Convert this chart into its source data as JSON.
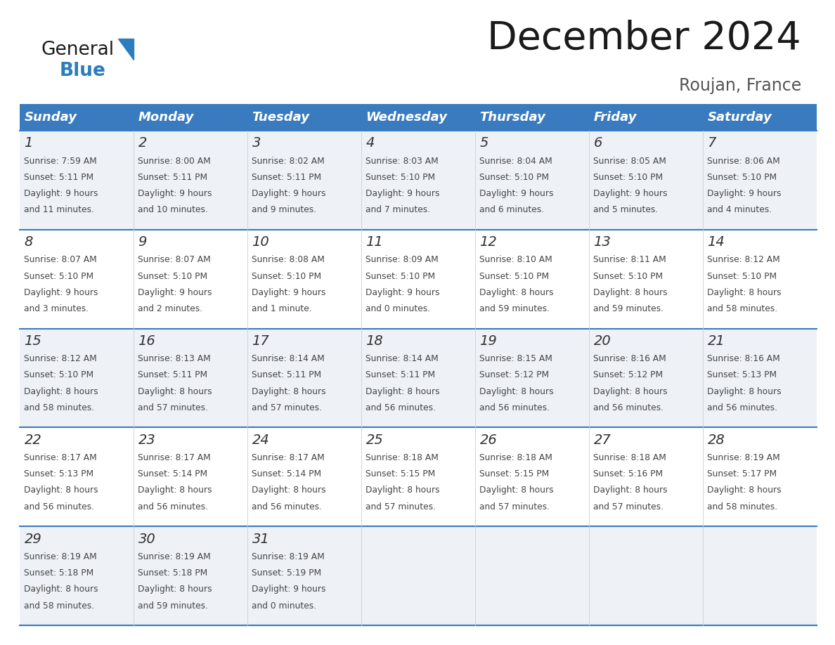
{
  "title": "December 2024",
  "subtitle": "Roujan, France",
  "header_color": "#3a7bbf",
  "header_text_color": "#ffffff",
  "day_names": [
    "Sunday",
    "Monday",
    "Tuesday",
    "Wednesday",
    "Thursday",
    "Friday",
    "Saturday"
  ],
  "weeks": [
    [
      {
        "day": 1,
        "sunrise": "7:59 AM",
        "sunset": "5:11 PM",
        "daylight": "9 hours and 11 minutes."
      },
      {
        "day": 2,
        "sunrise": "8:00 AM",
        "sunset": "5:11 PM",
        "daylight": "9 hours and 10 minutes."
      },
      {
        "day": 3,
        "sunrise": "8:02 AM",
        "sunset": "5:11 PM",
        "daylight": "9 hours and 9 minutes."
      },
      {
        "day": 4,
        "sunrise": "8:03 AM",
        "sunset": "5:10 PM",
        "daylight": "9 hours and 7 minutes."
      },
      {
        "day": 5,
        "sunrise": "8:04 AM",
        "sunset": "5:10 PM",
        "daylight": "9 hours and 6 minutes."
      },
      {
        "day": 6,
        "sunrise": "8:05 AM",
        "sunset": "5:10 PM",
        "daylight": "9 hours and 5 minutes."
      },
      {
        "day": 7,
        "sunrise": "8:06 AM",
        "sunset": "5:10 PM",
        "daylight": "9 hours and 4 minutes."
      }
    ],
    [
      {
        "day": 8,
        "sunrise": "8:07 AM",
        "sunset": "5:10 PM",
        "daylight": "9 hours and 3 minutes."
      },
      {
        "day": 9,
        "sunrise": "8:07 AM",
        "sunset": "5:10 PM",
        "daylight": "9 hours and 2 minutes."
      },
      {
        "day": 10,
        "sunrise": "8:08 AM",
        "sunset": "5:10 PM",
        "daylight": "9 hours and 1 minute."
      },
      {
        "day": 11,
        "sunrise": "8:09 AM",
        "sunset": "5:10 PM",
        "daylight": "9 hours and 0 minutes."
      },
      {
        "day": 12,
        "sunrise": "8:10 AM",
        "sunset": "5:10 PM",
        "daylight": "8 hours and 59 minutes."
      },
      {
        "day": 13,
        "sunrise": "8:11 AM",
        "sunset": "5:10 PM",
        "daylight": "8 hours and 59 minutes."
      },
      {
        "day": 14,
        "sunrise": "8:12 AM",
        "sunset": "5:10 PM",
        "daylight": "8 hours and 58 minutes."
      }
    ],
    [
      {
        "day": 15,
        "sunrise": "8:12 AM",
        "sunset": "5:10 PM",
        "daylight": "8 hours and 58 minutes."
      },
      {
        "day": 16,
        "sunrise": "8:13 AM",
        "sunset": "5:11 PM",
        "daylight": "8 hours and 57 minutes."
      },
      {
        "day": 17,
        "sunrise": "8:14 AM",
        "sunset": "5:11 PM",
        "daylight": "8 hours and 57 minutes."
      },
      {
        "day": 18,
        "sunrise": "8:14 AM",
        "sunset": "5:11 PM",
        "daylight": "8 hours and 56 minutes."
      },
      {
        "day": 19,
        "sunrise": "8:15 AM",
        "sunset": "5:12 PM",
        "daylight": "8 hours and 56 minutes."
      },
      {
        "day": 20,
        "sunrise": "8:16 AM",
        "sunset": "5:12 PM",
        "daylight": "8 hours and 56 minutes."
      },
      {
        "day": 21,
        "sunrise": "8:16 AM",
        "sunset": "5:13 PM",
        "daylight": "8 hours and 56 minutes."
      }
    ],
    [
      {
        "day": 22,
        "sunrise": "8:17 AM",
        "sunset": "5:13 PM",
        "daylight": "8 hours and 56 minutes."
      },
      {
        "day": 23,
        "sunrise": "8:17 AM",
        "sunset": "5:14 PM",
        "daylight": "8 hours and 56 minutes."
      },
      {
        "day": 24,
        "sunrise": "8:17 AM",
        "sunset": "5:14 PM",
        "daylight": "8 hours and 56 minutes."
      },
      {
        "day": 25,
        "sunrise": "8:18 AM",
        "sunset": "5:15 PM",
        "daylight": "8 hours and 57 minutes."
      },
      {
        "day": 26,
        "sunrise": "8:18 AM",
        "sunset": "5:15 PM",
        "daylight": "8 hours and 57 minutes."
      },
      {
        "day": 27,
        "sunrise": "8:18 AM",
        "sunset": "5:16 PM",
        "daylight": "8 hours and 57 minutes."
      },
      {
        "day": 28,
        "sunrise": "8:19 AM",
        "sunset": "5:17 PM",
        "daylight": "8 hours and 58 minutes."
      }
    ],
    [
      {
        "day": 29,
        "sunrise": "8:19 AM",
        "sunset": "5:18 PM",
        "daylight": "8 hours and 58 minutes."
      },
      {
        "day": 30,
        "sunrise": "8:19 AM",
        "sunset": "5:18 PM",
        "daylight": "8 hours and 59 minutes."
      },
      {
        "day": 31,
        "sunrise": "8:19 AM",
        "sunset": "5:19 PM",
        "daylight": "9 hours and 0 minutes."
      },
      null,
      null,
      null,
      null
    ]
  ],
  "bg_color": "#ffffff",
  "row_bg_colors": [
    "#eef2f7",
    "#ffffff",
    "#eef2f7",
    "#ffffff",
    "#eef2f7"
  ],
  "text_color": "#333333",
  "border_color": "#3a7bbf",
  "logo_general_color": "#1a1a1a",
  "logo_blue_color": "#2b7dc0",
  "title_color": "#1a1a1a",
  "subtitle_color": "#555555"
}
